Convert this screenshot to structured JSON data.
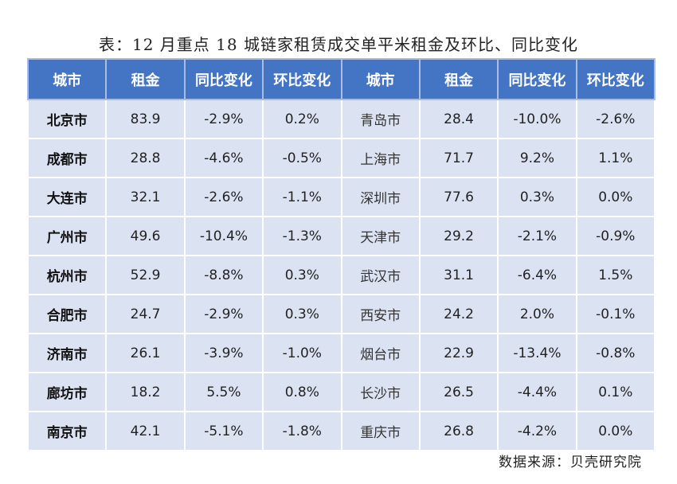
{
  "title": "表：12 月重点 18 城链家租赁成交单平米租金及环比、同比变化",
  "table": {
    "headers": [
      "城市",
      "租金",
      "同比变化",
      "环比变化",
      "城市",
      "租金",
      "同比变化",
      "环比变化"
    ],
    "rows": [
      [
        "北京市",
        "83.9",
        "-2.9%",
        "0.2%",
        "青岛市",
        "28.4",
        "-10.0%",
        "-2.6%"
      ],
      [
        "成都市",
        "28.8",
        "-4.6%",
        "-0.5%",
        "上海市",
        "71.7",
        "9.2%",
        "1.1%"
      ],
      [
        "大连市",
        "32.1",
        "-2.6%",
        "-1.1%",
        "深圳市",
        "77.6",
        "0.3%",
        "0.0%"
      ],
      [
        "广州市",
        "49.6",
        "-10.4%",
        "-1.3%",
        "天津市",
        "29.2",
        "-2.1%",
        "-0.9%"
      ],
      [
        "杭州市",
        "52.9",
        "-8.8%",
        "0.3%",
        "武汉市",
        "31.1",
        "-6.4%",
        "1.5%"
      ],
      [
        "合肥市",
        "24.7",
        "-2.9%",
        "0.3%",
        "西安市",
        "24.2",
        "2.0%",
        "-0.1%"
      ],
      [
        "济南市",
        "26.1",
        "-3.9%",
        "-1.0%",
        "烟台市",
        "22.9",
        "-13.4%",
        "-0.8%"
      ],
      [
        "廊坊市",
        "18.2",
        "5.5%",
        "0.8%",
        "长沙市",
        "26.5",
        "-4.4%",
        "0.1%"
      ],
      [
        "南京市",
        "42.1",
        "-5.1%",
        "-1.8%",
        "重庆市",
        "26.8",
        "-4.2%",
        "0.0%"
      ]
    ]
  },
  "source": "数据来源：贝壳研究院",
  "colors": {
    "header_bg": "#4474c4",
    "header_text": "#ffffff",
    "cell_bg": "#dbe3f3"
  }
}
